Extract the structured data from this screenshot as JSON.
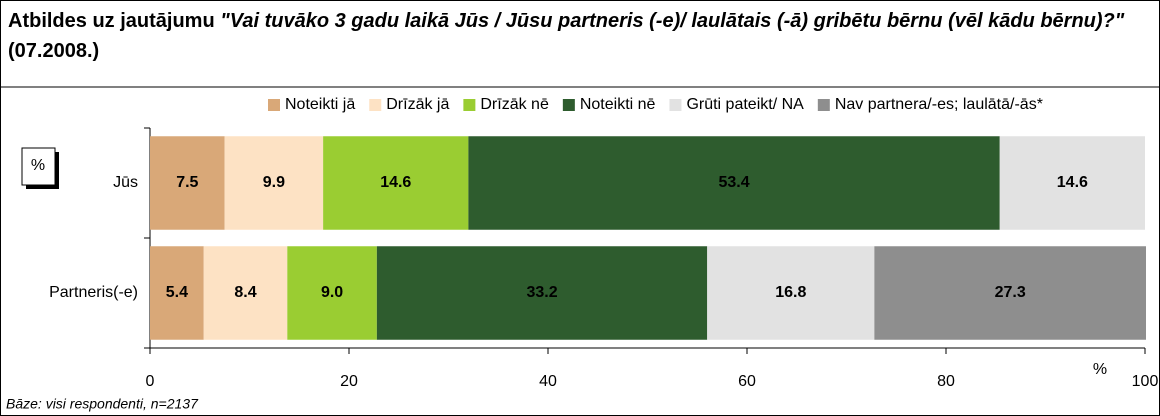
{
  "chart_data": {
    "type": "stacked-bar-horizontal",
    "title": [
      "Atbildes uz jautājumu ",
      "\"Vai tuvāko 3 gadu laikā Jūs / Jūsu partneris (-e)/ laulātais (-ā) gribētu bērnu (vēl kādu bērnu)?\"",
      " (07.2008.)"
    ],
    "unit_box": "%",
    "x_axis_label": "%",
    "footnote": "Bāze: visi respondenti, n=2137",
    "categories": [
      "Jūs",
      "Partneris(-e)"
    ],
    "series": [
      {
        "name": "Noteikti jā",
        "color": "#d9a878",
        "values": [
          7.5,
          5.4
        ],
        "value_labels": [
          "7.5",
          "5.4"
        ]
      },
      {
        "name": "Drīzāk jā",
        "color": "#fde2c4",
        "values": [
          9.9,
          8.4
        ],
        "value_labels": [
          "9.9",
          "8.4"
        ]
      },
      {
        "name": "Drīzāk nē",
        "color": "#9acd32",
        "values": [
          14.6,
          9.0
        ],
        "value_labels": [
          "14.6",
          "9.0"
        ]
      },
      {
        "name": "Noteikti nē",
        "color": "#2e5c2e",
        "values": [
          53.4,
          33.2
        ],
        "value_labels": [
          "53.4",
          "33.2"
        ]
      },
      {
        "name": "Grūti pateikt/ NA",
        "color": "#e2e2e2",
        "values": [
          14.6,
          16.8
        ],
        "value_labels": [
          "14.6",
          "16.8"
        ]
      },
      {
        "name": "Nav partnera/-es; laulātā/-ās*",
        "color": "#8e8e8e",
        "values": [
          null,
          27.3
        ],
        "value_labels": [
          null,
          "27.3"
        ]
      }
    ],
    "xlim": [
      0,
      100
    ],
    "xticks": [
      0,
      20,
      40,
      60,
      80,
      100
    ],
    "legend": "top"
  }
}
